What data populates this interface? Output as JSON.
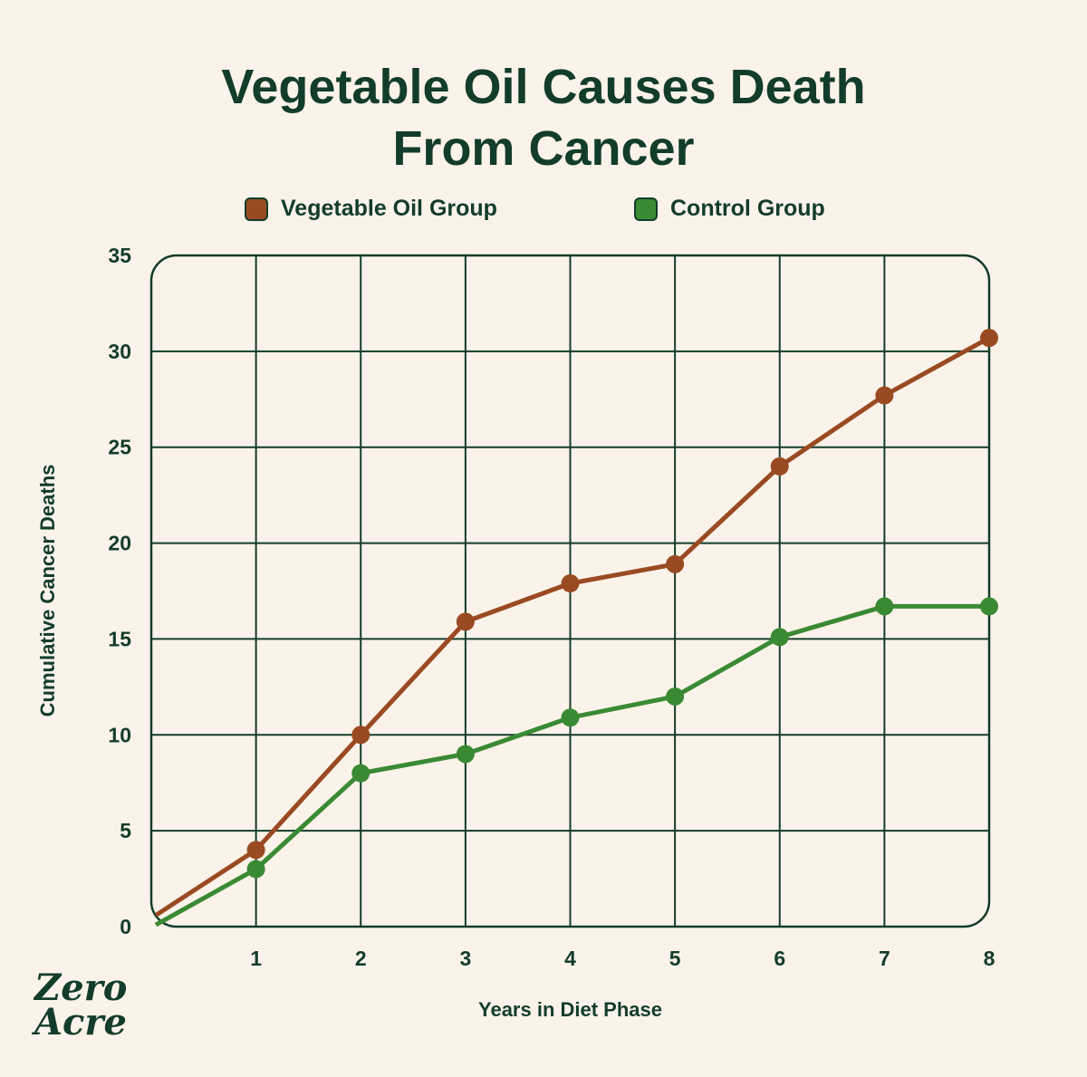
{
  "chart_data": {
    "type": "line",
    "title": "Vegetable Oil Causes Death From Cancer",
    "title_lines": [
      "Vegetable Oil Causes Death",
      "From Cancer"
    ],
    "xlabel": "Years in Diet Phase",
    "ylabel": "Cumulative Cancer Deaths",
    "xlim": [
      0,
      8
    ],
    "ylim": [
      0,
      35
    ],
    "x_ticks": [
      "1",
      "2",
      "3",
      "4",
      "5",
      "6",
      "7",
      "8"
    ],
    "y_ticks": [
      "0",
      "5",
      "10",
      "15",
      "20",
      "25",
      "30",
      "35"
    ],
    "grid": true,
    "legend_position": "top",
    "x": [
      0,
      1,
      2,
      3,
      4,
      5,
      6,
      7,
      8
    ],
    "series": [
      {
        "name": "Vegetable Oil Group",
        "color": "#9a4a22",
        "values": [
          0.5,
          4,
          10,
          15.9,
          17.9,
          18.9,
          24,
          27.7,
          30.7
        ]
      },
      {
        "name": "Control Group",
        "color": "#3a8a34",
        "values": [
          0,
          3,
          8,
          9,
          10.9,
          12,
          15.1,
          16.7,
          16.7
        ]
      }
    ]
  },
  "logo": {
    "line1": "Zero",
    "line2": "Acre"
  }
}
